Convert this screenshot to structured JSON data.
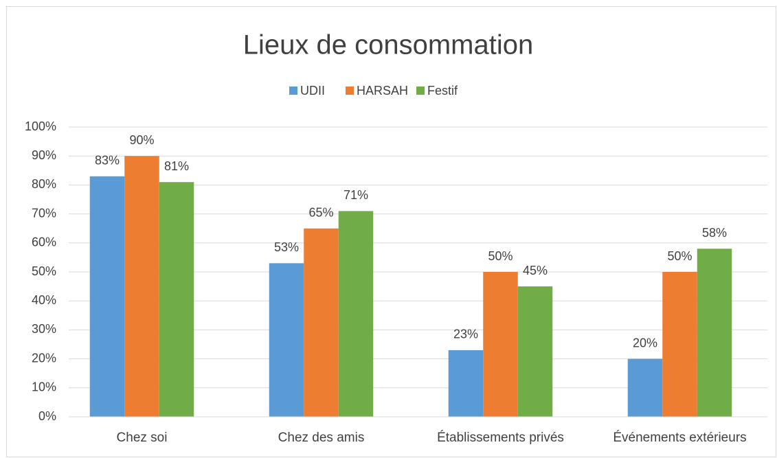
{
  "chart_data": {
    "type": "bar",
    "title": "Lieux de consommation",
    "categories": [
      "Chez soi",
      "Chez des amis",
      "Établissements privés",
      "Événements extérieurs"
    ],
    "series": [
      {
        "name": "UDII",
        "color": "#5b9bd5",
        "values": [
          83,
          53,
          23,
          20
        ],
        "value_labels": [
          "83%",
          "53%",
          "23%",
          "20%"
        ]
      },
      {
        "name": "HARSAH",
        "color": "#ed7d31",
        "values": [
          90,
          65,
          50,
          50
        ],
        "value_labels": [
          "90%",
          "65%",
          "50%",
          "50%"
        ]
      },
      {
        "name": "Festif",
        "color": "#70ad47",
        "values": [
          81,
          71,
          45,
          58
        ],
        "value_labels": [
          "81%",
          "71%",
          "45%",
          "58%"
        ]
      }
    ],
    "ylim": [
      0,
      100
    ],
    "yticks": [
      {
        "value": 0,
        "label": "0%"
      },
      {
        "value": 10,
        "label": "10%"
      },
      {
        "value": 20,
        "label": "20%"
      },
      {
        "value": 30,
        "label": "30%"
      },
      {
        "value": 40,
        "label": "40%"
      },
      {
        "value": 50,
        "label": "50%"
      },
      {
        "value": 60,
        "label": "60%"
      },
      {
        "value": 70,
        "label": "70%"
      },
      {
        "value": 80,
        "label": "80%"
      },
      {
        "value": 90,
        "label": "90%"
      },
      {
        "value": 100,
        "label": "100%"
      }
    ],
    "grid": true,
    "legend": "top"
  }
}
